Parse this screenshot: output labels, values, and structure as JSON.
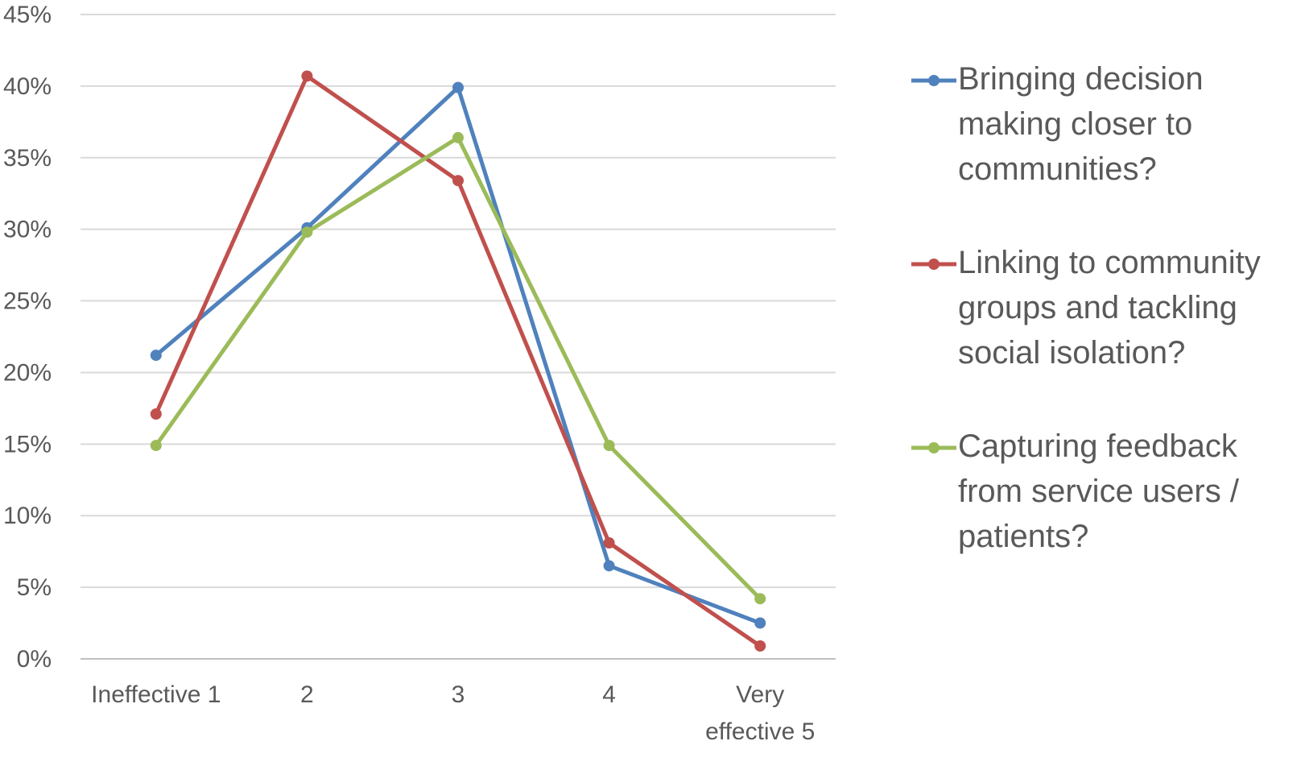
{
  "chart_data": {
    "type": "line",
    "title": "",
    "xlabel": "",
    "ylabel": "",
    "categories": [
      "Ineffective 1",
      "2",
      "3",
      "4",
      "Very effective 5"
    ],
    "category_lines": [
      [
        "Ineffective 1"
      ],
      [
        "2"
      ],
      [
        "3"
      ],
      [
        "4"
      ],
      [
        "Very",
        "effective 5"
      ]
    ],
    "ylim": [
      0,
      45
    ],
    "y_ticks": [
      0,
      5,
      10,
      15,
      20,
      25,
      30,
      35,
      40,
      45
    ],
    "y_tick_labels": [
      "0%",
      "5%",
      "10%",
      "15%",
      "20%",
      "25%",
      "30%",
      "35%",
      "40%",
      "45%"
    ],
    "grid": true,
    "legend_position": "right",
    "series": [
      {
        "name": "Bringing decision making closer to communities?",
        "name_lines": [
          "Bringing decision",
          "making closer to",
          "communities?"
        ],
        "color": "#4f81bd",
        "values": [
          21.2,
          30.1,
          39.9,
          6.5,
          2.5
        ]
      },
      {
        "name": "Linking to community groups and tackling social isolation?",
        "name_lines": [
          "Linking to community",
          "groups and tackling",
          "social isolation?"
        ],
        "color": "#c0504d",
        "values": [
          17.1,
          40.7,
          33.4,
          8.1,
          0.9
        ]
      },
      {
        "name": "Capturing feedback from service users / patients?",
        "name_lines": [
          "Capturing feedback",
          "from service users /",
          "patients?"
        ],
        "color": "#9bbb59",
        "values": [
          14.9,
          29.8,
          36.4,
          14.9,
          4.2
        ]
      }
    ]
  }
}
